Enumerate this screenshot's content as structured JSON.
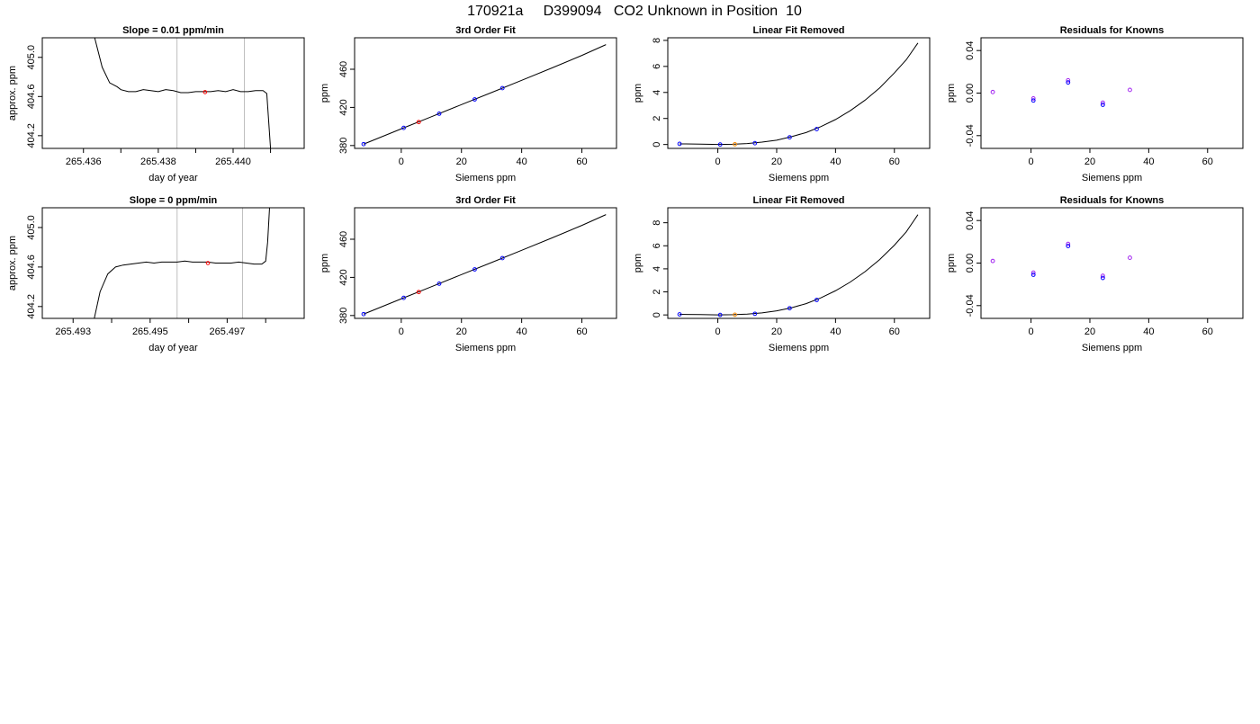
{
  "page_title": "170921a     D399094   CO2 Unknown in Position  10",
  "colors": {
    "trace": "#000000",
    "marker_red": "#ff0000",
    "marker_blue": "#0000ff",
    "marker_orange": "#ff8c00",
    "marker_purple": "#a020f0",
    "grid_line": "#bebebe"
  },
  "chart_data": [
    {
      "id": "r1c1",
      "type": "line",
      "title": "Slope =  0.01  ppm/min",
      "xlabel": "day of year",
      "ylabel": "approx. ppm",
      "xlim": [
        265.4349,
        265.4419
      ],
      "ylim": [
        404.07,
        405.2
      ],
      "xticks": [
        265.436,
        265.437,
        265.438,
        265.439,
        265.44,
        265.441
      ],
      "xticklabels": [
        "265.436",
        "",
        "265.438",
        "",
        "265.440",
        ""
      ],
      "yticks": [
        404.2,
        404.6,
        405.0
      ],
      "yticklabels": [
        "404.2",
        "404.6",
        "405.0"
      ],
      "vlines": [
        265.4385,
        265.4403
      ],
      "series": [
        {
          "x": [
            265.4363,
            265.4365,
            265.4367,
            265.4369,
            265.437,
            265.4372,
            265.4374,
            265.4376,
            265.4378,
            265.438,
            265.4382,
            265.4384,
            265.4386,
            265.4388,
            265.439,
            265.4392,
            265.4394,
            265.4396,
            265.4398,
            265.44,
            265.4402,
            265.4404,
            265.4406,
            265.4408,
            265.4409,
            265.441
          ],
          "y": [
            405.2,
            404.9,
            404.74,
            404.7,
            404.67,
            404.65,
            404.65,
            404.67,
            404.66,
            404.65,
            404.67,
            404.66,
            404.64,
            404.64,
            404.65,
            404.65,
            404.65,
            404.66,
            404.65,
            404.67,
            404.65,
            404.65,
            404.66,
            404.66,
            404.63,
            404.07
          ]
        }
      ],
      "markers": [
        {
          "x": 265.43925,
          "y": 404.645,
          "color": "red"
        }
      ]
    },
    {
      "id": "r1c2",
      "type": "scatter",
      "title": "3rd Order Fit",
      "xlabel": "Siemens ppm",
      "ylabel": "ppm",
      "xlim": [
        -15.5,
        71.5
      ],
      "ylim": [
        377,
        493
      ],
      "xticks": [
        0,
        20,
        40,
        60
      ],
      "xticklabels": [
        "0",
        "20",
        "40",
        "60"
      ],
      "yticks": [
        380,
        420,
        460
      ],
      "yticklabels": [
        "380",
        "420",
        "460"
      ],
      "curve": {
        "x": [
          -12.5,
          0,
          10,
          20,
          30,
          40,
          50,
          60,
          68
        ],
        "y": [
          381.5,
          397.5,
          410.2,
          422.9,
          435.6,
          448.4,
          461.3,
          474.5,
          485.8
        ]
      },
      "points": [
        {
          "x": -12.5,
          "y": 381.5,
          "color": "blue"
        },
        {
          "x": 0.8,
          "y": 398.5,
          "color": "blue"
        },
        {
          "x": 5.8,
          "y": 404.6,
          "color": "red"
        },
        {
          "x": 12.6,
          "y": 413.4,
          "color": "blue"
        },
        {
          "x": 24.4,
          "y": 428.4,
          "color": "blue"
        },
        {
          "x": 33.6,
          "y": 440.2,
          "color": "blue"
        }
      ]
    },
    {
      "id": "r1c3",
      "type": "scatter",
      "title": "Linear Fit Removed",
      "xlabel": "Siemens ppm",
      "ylabel": "ppm",
      "xlim": [
        -17,
        72
      ],
      "ylim": [
        -0.3,
        8.2
      ],
      "xticks": [
        0,
        20,
        40,
        60
      ],
      "xticklabels": [
        "0",
        "20",
        "40",
        "60"
      ],
      "yticks": [
        0,
        2,
        4,
        6,
        8
      ],
      "yticklabels": [
        "0",
        "2",
        "4",
        "6",
        "8"
      ],
      "curve": {
        "x": [
          -13,
          -6,
          0,
          5,
          10,
          15,
          20,
          25,
          30,
          35,
          40,
          45,
          50,
          55,
          60,
          64,
          68
        ],
        "y": [
          0.05,
          0.03,
          0.0,
          0.02,
          0.07,
          0.18,
          0.33,
          0.6,
          0.92,
          1.37,
          1.92,
          2.6,
          3.4,
          4.35,
          5.5,
          6.5,
          7.8
        ]
      },
      "points": [
        {
          "x": -13,
          "y": 0.05,
          "color": "blue"
        },
        {
          "x": 0.8,
          "y": 0.0,
          "color": "blue"
        },
        {
          "x": 5.8,
          "y": 0.02,
          "color": "orange"
        },
        {
          "x": 12.6,
          "y": 0.1,
          "color": "blue"
        },
        {
          "x": 24.4,
          "y": 0.55,
          "color": "blue"
        },
        {
          "x": 33.6,
          "y": 1.18,
          "color": "blue"
        }
      ]
    },
    {
      "id": "r1c4",
      "type": "scatter",
      "title": "Residuals for Knowns",
      "xlabel": "Siemens ppm",
      "ylabel": "ppm",
      "xlim": [
        -17,
        72
      ],
      "ylim": [
        -0.052,
        0.052
      ],
      "xticks": [
        0,
        20,
        40,
        60
      ],
      "xticklabels": [
        "0",
        "20",
        "40",
        "60"
      ],
      "yticks": [
        -0.04,
        0.0,
        0.04
      ],
      "yticklabels": [
        "-0.04",
        "0.00",
        "0.04"
      ],
      "points": [
        {
          "x": -13,
          "y": 0.001,
          "color": "purple"
        },
        {
          "x": 0.8,
          "y": -0.005,
          "color": "purple"
        },
        {
          "x": 0.8,
          "y": -0.007,
          "color": "blue"
        },
        {
          "x": 12.6,
          "y": 0.012,
          "color": "purple"
        },
        {
          "x": 12.6,
          "y": 0.01,
          "color": "blue"
        },
        {
          "x": 24.4,
          "y": -0.009,
          "color": "purple"
        },
        {
          "x": 24.4,
          "y": -0.011,
          "color": "blue"
        },
        {
          "x": 33.6,
          "y": 0.003,
          "color": "purple"
        }
      ]
    },
    {
      "id": "r2c1",
      "type": "line",
      "title": "Slope =  0  ppm/min",
      "xlabel": "day of year",
      "ylabel": "approx. ppm",
      "xlim": [
        265.4922,
        265.499
      ],
      "ylim": [
        404.08,
        405.2
      ],
      "xticks": [
        265.493,
        265.494,
        265.495,
        265.496,
        265.497,
        265.498
      ],
      "xticklabels": [
        "265.493",
        "",
        "265.495",
        "",
        "265.497",
        ""
      ],
      "yticks": [
        404.2,
        404.6,
        405.0
      ],
      "yticklabels": [
        "404.2",
        "404.6",
        "405.0"
      ],
      "vlines": [
        265.4957,
        265.4974
      ],
      "series": [
        {
          "x": [
            265.49355,
            265.4937,
            265.4939,
            265.4941,
            265.4943,
            265.4945,
            265.4947,
            265.4949,
            265.4951,
            265.4953,
            265.4955,
            265.4957,
            265.4959,
            265.4961,
            265.4963,
            265.4965,
            265.4967,
            265.4969,
            265.4971,
            265.4973,
            265.4975,
            265.4977,
            265.4979,
            265.498,
            265.49805,
            265.4981
          ],
          "y": [
            404.08,
            404.35,
            404.53,
            404.6,
            404.62,
            404.63,
            404.64,
            404.65,
            404.64,
            404.65,
            404.65,
            404.65,
            404.66,
            404.65,
            404.65,
            404.65,
            404.64,
            404.64,
            404.64,
            404.65,
            404.64,
            404.63,
            404.63,
            404.66,
            404.85,
            405.2
          ]
        }
      ],
      "markers": [
        {
          "x": 265.4965,
          "y": 404.64,
          "color": "red"
        }
      ]
    },
    {
      "id": "r2c2",
      "type": "scatter",
      "title": "3rd Order Fit",
      "xlabel": "Siemens ppm",
      "ylabel": "ppm",
      "xlim": [
        -15.5,
        71.5
      ],
      "ylim": [
        377,
        493
      ],
      "xticks": [
        0,
        20,
        40,
        60
      ],
      "xticklabels": [
        "0",
        "20",
        "40",
        "60"
      ],
      "yticks": [
        380,
        420,
        460
      ],
      "yticklabels": [
        "380",
        "420",
        "460"
      ],
      "curve": {
        "x": [
          -12.5,
          0,
          10,
          20,
          30,
          40,
          50,
          60,
          68
        ],
        "y": [
          381.5,
          397.5,
          410.2,
          422.9,
          435.6,
          448.4,
          461.3,
          474.5,
          485.8
        ]
      },
      "points": [
        {
          "x": -12.5,
          "y": 381.5,
          "color": "blue"
        },
        {
          "x": 0.8,
          "y": 398.5,
          "color": "blue"
        },
        {
          "x": 5.8,
          "y": 404.6,
          "color": "red"
        },
        {
          "x": 12.6,
          "y": 413.4,
          "color": "blue"
        },
        {
          "x": 24.4,
          "y": 428.4,
          "color": "blue"
        },
        {
          "x": 33.6,
          "y": 440.2,
          "color": "blue"
        }
      ]
    },
    {
      "id": "r2c3",
      "type": "scatter",
      "title": "Linear Fit Removed",
      "xlabel": "Siemens ppm",
      "ylabel": "ppm",
      "xlim": [
        -17,
        72
      ],
      "ylim": [
        -0.3,
        9.3
      ],
      "xticks": [
        0,
        20,
        40,
        60
      ],
      "xticklabels": [
        "0",
        "20",
        "40",
        "60"
      ],
      "yticks": [
        0,
        2,
        4,
        6,
        8
      ],
      "yticklabels": [
        "0",
        "2",
        "4",
        "6",
        "8"
      ],
      "curve": {
        "x": [
          -13,
          -6,
          0,
          5,
          10,
          15,
          20,
          25,
          30,
          35,
          40,
          45,
          50,
          55,
          60,
          64,
          68
        ],
        "y": [
          0.05,
          0.03,
          0.0,
          0.02,
          0.07,
          0.18,
          0.35,
          0.62,
          0.98,
          1.48,
          2.1,
          2.85,
          3.75,
          4.8,
          6.05,
          7.2,
          8.7
        ]
      },
      "points": [
        {
          "x": -13,
          "y": 0.05,
          "color": "blue"
        },
        {
          "x": 0.8,
          "y": 0.0,
          "color": "blue"
        },
        {
          "x": 5.8,
          "y": 0.02,
          "color": "orange"
        },
        {
          "x": 12.6,
          "y": 0.1,
          "color": "blue"
        },
        {
          "x": 24.4,
          "y": 0.58,
          "color": "blue"
        },
        {
          "x": 33.6,
          "y": 1.3,
          "color": "blue"
        }
      ]
    },
    {
      "id": "r2c4",
      "type": "scatter",
      "title": "Residuals for Knowns",
      "xlabel": "Siemens ppm",
      "ylabel": "ppm",
      "xlim": [
        -17,
        72
      ],
      "ylim": [
        -0.052,
        0.052
      ],
      "xticks": [
        0,
        20,
        40,
        60
      ],
      "xticklabels": [
        "0",
        "20",
        "40",
        "60"
      ],
      "yticks": [
        -0.04,
        0.0,
        0.04
      ],
      "yticklabels": [
        "-0.04",
        "0.00",
        "0.04"
      ],
      "points": [
        {
          "x": -13,
          "y": 0.002,
          "color": "purple"
        },
        {
          "x": 0.8,
          "y": -0.009,
          "color": "purple"
        },
        {
          "x": 0.8,
          "y": -0.011,
          "color": "blue"
        },
        {
          "x": 12.6,
          "y": 0.018,
          "color": "purple"
        },
        {
          "x": 12.6,
          "y": 0.016,
          "color": "blue"
        },
        {
          "x": 24.4,
          "y": -0.012,
          "color": "purple"
        },
        {
          "x": 24.4,
          "y": -0.014,
          "color": "blue"
        },
        {
          "x": 33.6,
          "y": 0.005,
          "color": "purple"
        }
      ]
    }
  ]
}
